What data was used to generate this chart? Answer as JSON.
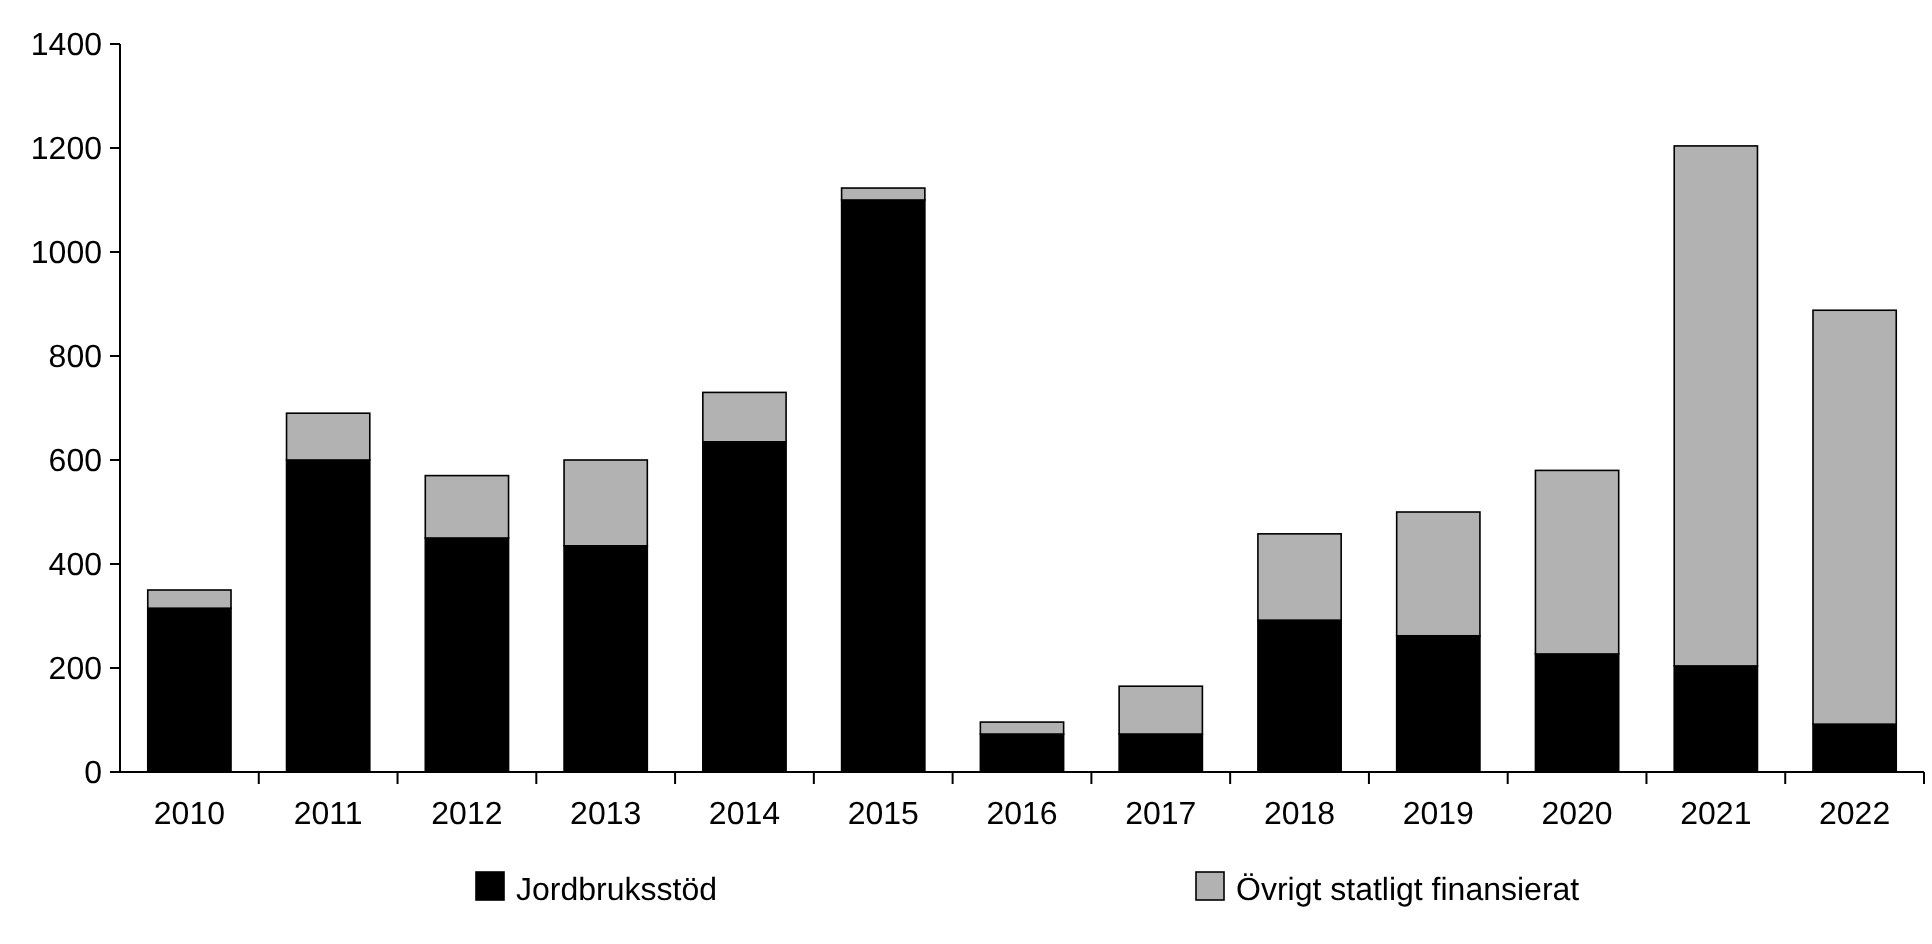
{
  "chart_data": {
    "type": "bar",
    "stacked": true,
    "categories": [
      "2010",
      "2011",
      "2012",
      "2013",
      "2014",
      "2015",
      "2016",
      "2017",
      "2018",
      "2019",
      "2020",
      "2021",
      "2022"
    ],
    "series": [
      {
        "name": "Jordbruksstöd",
        "color": "#000000",
        "values": [
          315,
          600,
          450,
          435,
          635,
          1100,
          73,
          73,
          292,
          262,
          227,
          204,
          92
        ]
      },
      {
        "name": "Övrigt statligt finansierat",
        "color": "#b2b2b2",
        "values": [
          35,
          90,
          120,
          165,
          95,
          23,
          23,
          92,
          166,
          238,
          353,
          1000,
          796
        ]
      }
    ],
    "ylim": [
      0,
      1400
    ],
    "yticks": [
      0,
      200,
      400,
      600,
      800,
      1000,
      1200,
      1400
    ],
    "grid": false,
    "legend": "bottom"
  }
}
